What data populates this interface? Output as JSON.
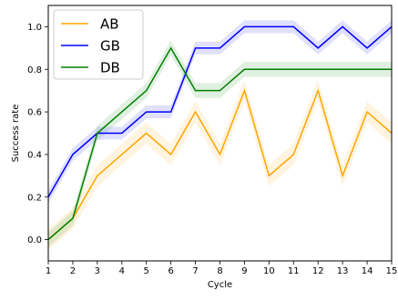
{
  "chart_data": {
    "type": "line",
    "xlabel": "Cycle",
    "ylabel": "Success rate",
    "x": [
      1,
      2,
      3,
      4,
      5,
      6,
      7,
      8,
      9,
      10,
      11,
      12,
      13,
      14,
      15
    ],
    "xlim": [
      1,
      15
    ],
    "ylim": [
      -0.1,
      1.1
    ],
    "xticks": [
      "1",
      "2",
      "3",
      "4",
      "5",
      "6",
      "7",
      "8",
      "9",
      "10",
      "11",
      "12",
      "13",
      "14",
      "15"
    ],
    "yticks": [
      "0.0",
      "0.2",
      "0.4",
      "0.6",
      "0.8",
      "1.0"
    ],
    "grid": false,
    "legend_position": "upper-left",
    "series": [
      {
        "name": "AB",
        "color": "#ffa500",
        "values": [
          0.0,
          0.1,
          0.3,
          0.4,
          0.5,
          0.4,
          0.6,
          0.4,
          0.7,
          0.3,
          0.4,
          0.7,
          0.3,
          0.6,
          0.5
        ],
        "band": 0.05
      },
      {
        "name": "GB",
        "color": "#0000ff",
        "values": [
          0.2,
          0.4,
          0.5,
          0.5,
          0.6,
          0.6,
          0.9,
          0.9,
          1.0,
          1.0,
          1.0,
          0.9,
          1.0,
          0.9,
          1.0
        ],
        "band": 0.03
      },
      {
        "name": "DB",
        "color": "#008000",
        "values": [
          0.0,
          0.1,
          0.5,
          0.6,
          0.7,
          0.9,
          0.7,
          0.7,
          0.8,
          0.8,
          0.8,
          0.8,
          0.8,
          0.8,
          0.8
        ],
        "band": 0.035
      }
    ]
  }
}
